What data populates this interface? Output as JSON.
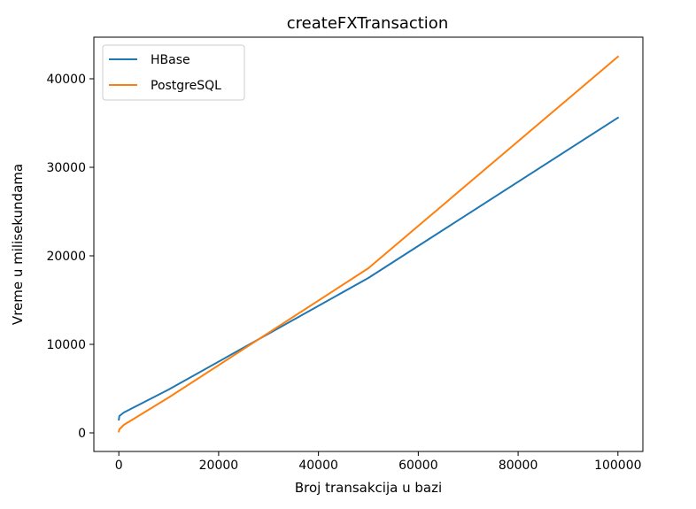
{
  "chart_data": {
    "type": "line",
    "title": "createFXTransaction",
    "xlabel": "Broj transakcija u bazi",
    "ylabel": "Vreme u milisekundama",
    "xlim": [
      -5000,
      105000
    ],
    "ylim": [
      -2100,
      44700
    ],
    "xticks": [
      0,
      20000,
      40000,
      60000,
      80000,
      100000
    ],
    "yticks": [
      0,
      10000,
      20000,
      30000,
      40000
    ],
    "grid": false,
    "legend_position": "upper-left",
    "series": [
      {
        "name": "HBase",
        "color": "#1f77b4",
        "x": [
          10,
          100,
          1000,
          10000,
          50000,
          100000
        ],
        "y": [
          1500,
          1900,
          2300,
          4900,
          17500,
          35600
        ]
      },
      {
        "name": "PostgreSQL",
        "color": "#ff7f0e",
        "x": [
          10,
          100,
          1000,
          10000,
          50000,
          100000
        ],
        "y": [
          150,
          400,
          900,
          4000,
          18600,
          42500
        ]
      }
    ]
  }
}
